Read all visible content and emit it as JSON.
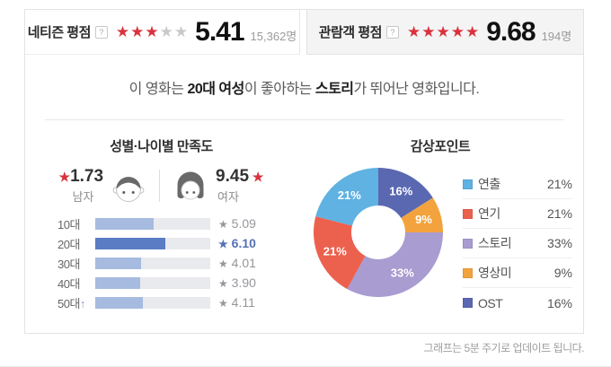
{
  "colors": {
    "star_red": "#d9323e",
    "star_empty": "#c9c9c9",
    "bar_fill": "#a6bbdf",
    "bar_fill_highlight": "#5a7cc4",
    "bar_track": "#e9eaee",
    "value_gray": "#96969c",
    "value_highlight": "#5671b5",
    "tab_inactive_bg": "#f4f4f4",
    "panel_border": "#e3e3e3"
  },
  "header": {
    "netizen": {
      "label": "네티즌 평점",
      "help": "?",
      "stars_filled": 3,
      "stars_total": 5,
      "score": "5.41",
      "count": "15,362명"
    },
    "audience": {
      "label": "관람객 평점",
      "help": "?",
      "stars_filled": 5,
      "stars_total": 5,
      "score": "9.68",
      "count": "194명"
    }
  },
  "summary": {
    "prefix": "이 영화는 ",
    "highlight_demo": "20대 여성",
    "middle": "이 좋아하는 ",
    "highlight_point": "스토리",
    "suffix": "가 뛰어난 영화입니다."
  },
  "satisfaction": {
    "title": "성별·나이별 만족도",
    "male": {
      "score": "1.73",
      "label": "남자"
    },
    "female": {
      "score": "9.45",
      "label": "여자"
    },
    "scale_max": 10,
    "age_rows": [
      {
        "label": "10대",
        "arrow": "",
        "value": 5.09,
        "display": "5.09",
        "highlight": false
      },
      {
        "label": "20대",
        "arrow": "",
        "value": 6.1,
        "display": "6.10",
        "highlight": true
      },
      {
        "label": "30대",
        "arrow": "",
        "value": 4.01,
        "display": "4.01",
        "highlight": false
      },
      {
        "label": "40대",
        "arrow": "",
        "value": 3.9,
        "display": "3.90",
        "highlight": false
      },
      {
        "label": "50대",
        "arrow": "↑",
        "value": 4.11,
        "display": "4.11",
        "highlight": false
      }
    ]
  },
  "chart_data": {
    "type": "pie",
    "title": "감상포인트",
    "donut": true,
    "slices": [
      {
        "label": "연출",
        "value": 21,
        "color": "#5fb2e2"
      },
      {
        "label": "연기",
        "value": 21,
        "color": "#ec614e"
      },
      {
        "label": "스토리",
        "value": 33,
        "color": "#a89cd1"
      },
      {
        "label": "영상미",
        "value": 9,
        "color": "#f3a33d"
      },
      {
        "label": "OST",
        "value": 16,
        "color": "#5a68b2"
      }
    ],
    "order_clockwise_from_top": [
      "OST",
      "영상미",
      "스토리",
      "연기",
      "연출"
    ],
    "labels_format": "percent",
    "legend_position": "right"
  },
  "footnote": "그래프는 5분 주기로 업데이트 됩니다."
}
